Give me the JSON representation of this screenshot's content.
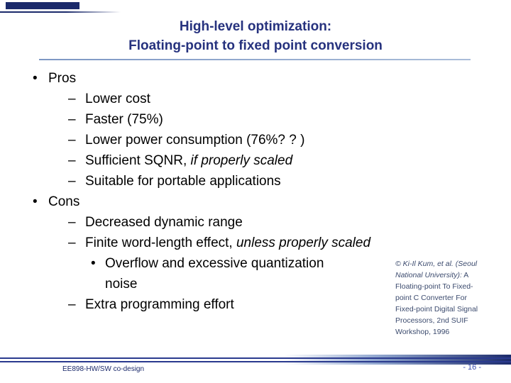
{
  "title": {
    "line1": "High-level optimization:",
    "line2": "Floating-point to fixed point conversion"
  },
  "content": {
    "markers": {
      "level1": "•",
      "level2": "–",
      "level3": "•"
    },
    "items": [
      {
        "level": 1,
        "text": "Pros"
      },
      {
        "level": 2,
        "text": "Lower cost"
      },
      {
        "level": 2,
        "text": "Faster (75%)"
      },
      {
        "level": 2,
        "text": "Lower power consumption  (76%? ? )"
      },
      {
        "level": 2,
        "text": "Sufficient SQNR,",
        "em": " if properly scaled"
      },
      {
        "level": 2,
        "text": "Suitable for portable applications"
      },
      {
        "level": 1,
        "text": "Cons"
      },
      {
        "level": 2,
        "text": "Decreased dynamic range"
      },
      {
        "level": 2,
        "text": "Finite word-length effect,",
        "em": " unless properly scaled"
      },
      {
        "level": 3,
        "text": "Overflow and excessive quantization noise"
      },
      {
        "level": 2,
        "text": "Extra programming effort"
      }
    ]
  },
  "citation": {
    "emphasis": "© Ki-Il Kum, et al. (Seoul National University):",
    "rest": " A Floating-point To Fixed-point C Converter For Fixed-point Digital Signal Processors, 2nd SUIF Workshop, 1996"
  },
  "footer": {
    "course": "EE898-HW/SW co-design",
    "page": "- 16 -"
  },
  "colors": {
    "title": "#26327e",
    "accent_navy": "#1b2a6b",
    "citation": "#3c4b6e"
  }
}
